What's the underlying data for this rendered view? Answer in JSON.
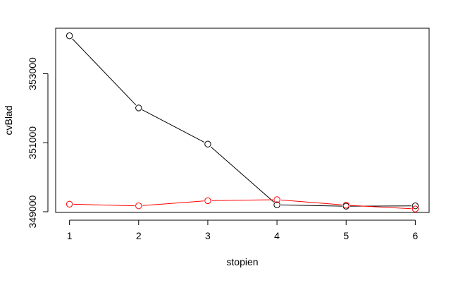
{
  "chart_data": {
    "type": "line",
    "title": "",
    "xlabel": "stopien",
    "ylabel": "cvBlad",
    "x": [
      1,
      2,
      3,
      4,
      5,
      6
    ],
    "xticks": [
      "1",
      "2",
      "3",
      "4",
      "5",
      "6"
    ],
    "yticks": [
      349000,
      351000,
      353000
    ],
    "ytick_labels": [
      "349000",
      "351000",
      "353000"
    ],
    "xlim": [
      0.8,
      6.2
    ],
    "ylim": [
      348980,
      354320
    ],
    "grid": false,
    "legend": "none",
    "series": [
      {
        "color": "#000000",
        "values": [
          354100,
          352010,
          350960,
          349200,
          349160,
          349170
        ]
      },
      {
        "color": "#ff0000",
        "values": [
          349220,
          349170,
          349320,
          349350,
          349190,
          349080
        ]
      }
    ]
  }
}
